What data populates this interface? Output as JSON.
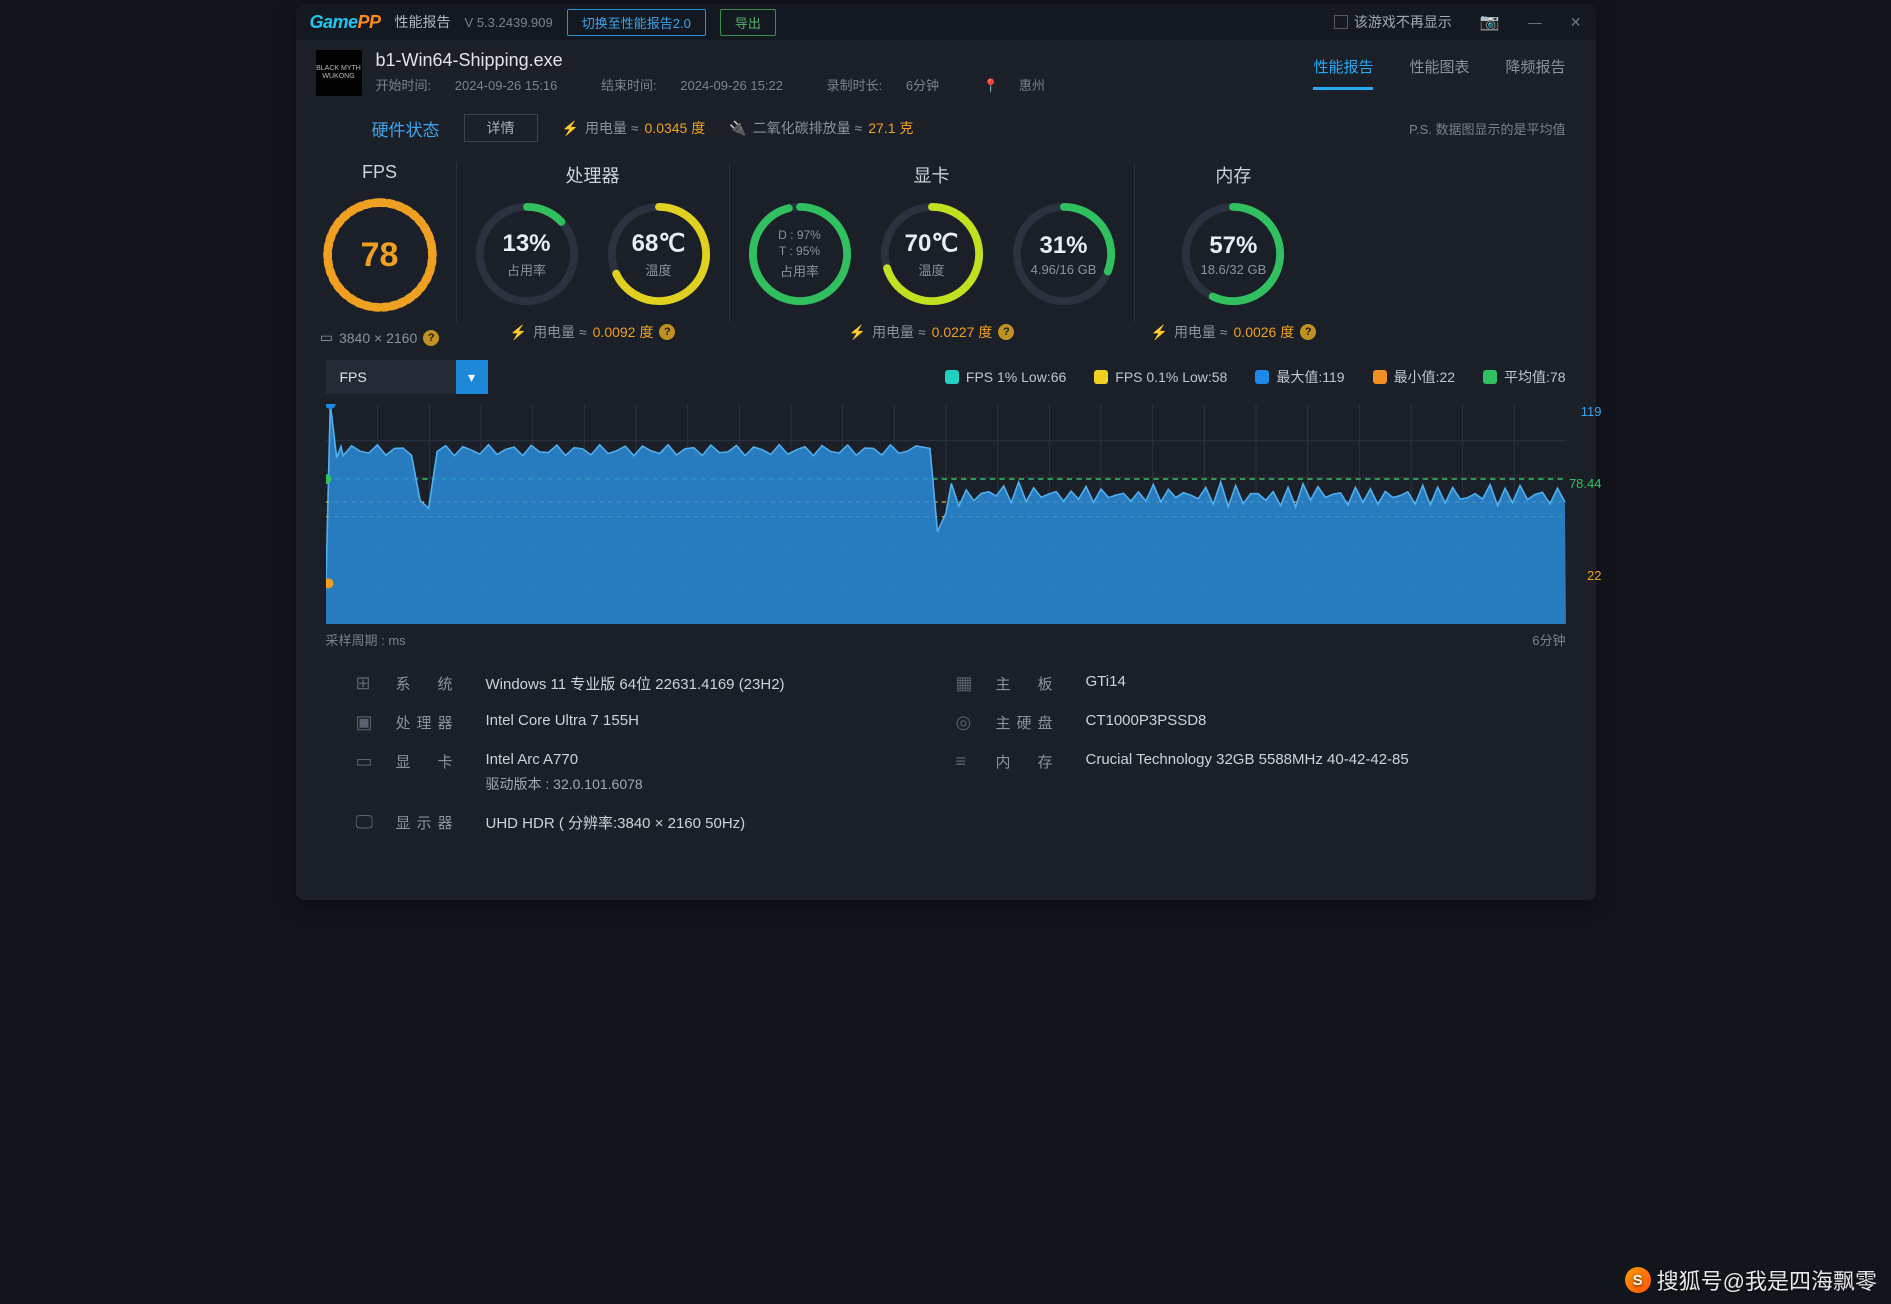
{
  "titlebar": {
    "logo_game": "Game",
    "logo_pp": "PP",
    "report_label": "性能报告",
    "version": "V 5.3.2439.909",
    "switch_btn": "切换至性能报告2.0",
    "export_btn": "导出",
    "hide_game": "该游戏不再显示"
  },
  "header": {
    "exe": "b1-Win64-Shipping.exe",
    "thumb_text": "BLACK MYTH\nWUKONG",
    "start_label": "开始时间:",
    "start_value": "2024-09-26 15:16",
    "end_label": "结束时间:",
    "end_value": "2024-09-26 15:22",
    "dur_label": "录制时长:",
    "dur_value": "6分钟",
    "location": "惠州",
    "tabs": {
      "t1": "性能报告",
      "t2": "性能图表",
      "t3": "降频报告"
    }
  },
  "statusbar": {
    "hw": "硬件状态",
    "detail": "详情",
    "power_label": "用电量 ≈",
    "power_value": "0.0345 度",
    "co2_label": "二氧化碳排放量 ≈",
    "co2_value": "27.1 克",
    "ps": "P.S. 数据图显示的是平均值"
  },
  "gauges": {
    "fps": {
      "title": "FPS",
      "value": "78",
      "res": "3840 × 2160",
      "color": "#f0a020",
      "dashed": true,
      "pct": 65
    },
    "cpu": {
      "title": "处理器",
      "usage": {
        "value": "13%",
        "sub": "占用率",
        "color": "#30c060",
        "pct": 13
      },
      "temp": {
        "value": "68℃",
        "sub": "温度",
        "color": "#e0d020",
        "pct": 68
      },
      "power_label": "用电量 ≈",
      "power_value": "0.0092 度"
    },
    "gpu": {
      "title": "显卡",
      "usage": {
        "line1": "D : 97%",
        "line2": "T : 95%",
        "sub": "占用率",
        "color": "#30c060",
        "pct": 96
      },
      "temp": {
        "value": "70℃",
        "sub": "温度",
        "color": "#c0e020",
        "pct": 70
      },
      "vram": {
        "value": "31%",
        "sub": "4.96/16 GB",
        "color": "#30c060",
        "pct": 31
      },
      "power_label": "用电量 ≈",
      "power_value": "0.0227 度"
    },
    "mem": {
      "title": "内存",
      "usage": {
        "value": "57%",
        "sub": "18.6/32 GB",
        "color": "#30c060",
        "pct": 57
      },
      "power_label": "用电量 ≈",
      "power_value": "0.0026 度"
    }
  },
  "chart": {
    "selector": "FPS",
    "legend": {
      "l1": {
        "text": "FPS 1% Low:66",
        "color": "#20d0c0"
      },
      "l2": {
        "text": "FPS 0.1% Low:58",
        "color": "#f0d020"
      },
      "l3": {
        "text": "最大值:119",
        "color": "#1e88e8"
      },
      "l4": {
        "text": "最小值:22",
        "color": "#f09020"
      },
      "l5": {
        "text": "平均值:78",
        "color": "#30c060"
      }
    },
    "y_max": "119",
    "y_avg": "78.44",
    "y_min": "22",
    "x_left": "采样周期 : ms",
    "x_right": "6分钟",
    "colors": {
      "area": "#2a8cd8",
      "grid": "#2a3240",
      "bg": "#1a1f28"
    }
  },
  "sysinfo": {
    "os_label": "系　统",
    "os_value": "Windows 11 专业版 64位 22631.4169 (23H2)",
    "cpu_label": "处理器",
    "cpu_value": "Intel Core Ultra 7 155H",
    "gpu_label": "显　卡",
    "gpu_value": "Intel Arc A770",
    "gpu_driver": "驱动版本 : 32.0.101.6078",
    "disp_label": "显示器",
    "disp_value": "UHD HDR ( 分辨率:3840 × 2160 50Hz)",
    "mb_label": "主　板",
    "mb_value": "GTi14",
    "ssd_label": "主硬盘",
    "ssd_value": "CT1000P3PSSD8",
    "mem_label": "内　存",
    "mem_value": "Crucial Technology 32GB 5588MHz 40-42-42-85"
  },
  "watermark": "搜狐号@我是四海飘零"
}
